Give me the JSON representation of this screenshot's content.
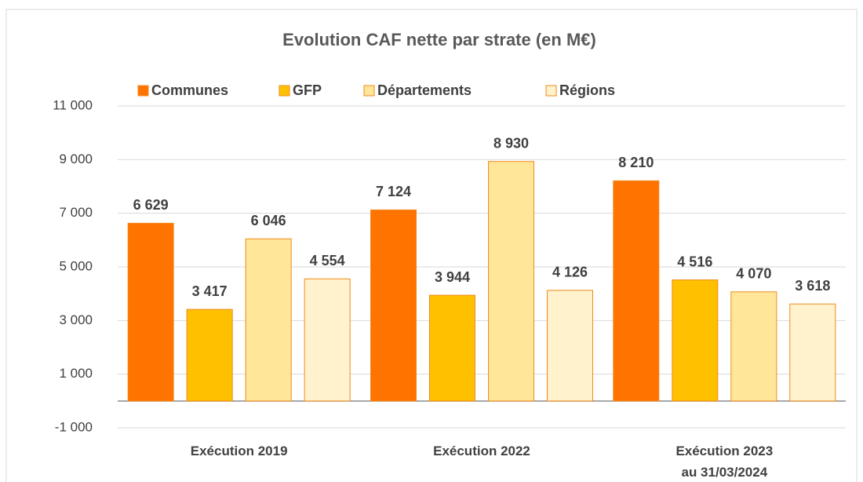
{
  "chart_data": {
    "type": "bar",
    "title": "Evolution CAF nette par strate (en M€)",
    "categories": [
      "Exécution 2019",
      "Exécution 2022",
      "Exécution 2023\nau 31/03/2024"
    ],
    "series": [
      {
        "name": "Communes",
        "color": "#ff7300",
        "values": [
          6629,
          7124,
          8210
        ],
        "value_labels": [
          "6 629",
          "7 124",
          "8 210"
        ]
      },
      {
        "name": "GFP",
        "color": "#ffc000",
        "values": [
          3417,
          3944,
          4516
        ],
        "value_labels": [
          "3 417",
          "3 944",
          "4 516"
        ]
      },
      {
        "name": "Départements",
        "color": "#ffe699",
        "values": [
          6046,
          8930,
          4070
        ],
        "value_labels": [
          "6 046",
          "8 930",
          "4 070"
        ]
      },
      {
        "name": "Régions",
        "color": "#fff2cc",
        "values": [
          4554,
          4126,
          3618
        ],
        "value_labels": [
          "4 554",
          "4 126",
          "3 618"
        ]
      }
    ],
    "ylim": [
      -1000,
      11000
    ],
    "yticks": [
      {
        "value": -1000,
        "label": "-1 000"
      },
      {
        "value": 1000,
        "label": "1 000"
      },
      {
        "value": 3000,
        "label": "3 000"
      },
      {
        "value": 5000,
        "label": "5 000"
      },
      {
        "value": 7000,
        "label": "7 000"
      },
      {
        "value": 9000,
        "label": "9 000"
      },
      {
        "value": 11000,
        "label": "11 000"
      }
    ],
    "grid": true,
    "legend": "top"
  }
}
